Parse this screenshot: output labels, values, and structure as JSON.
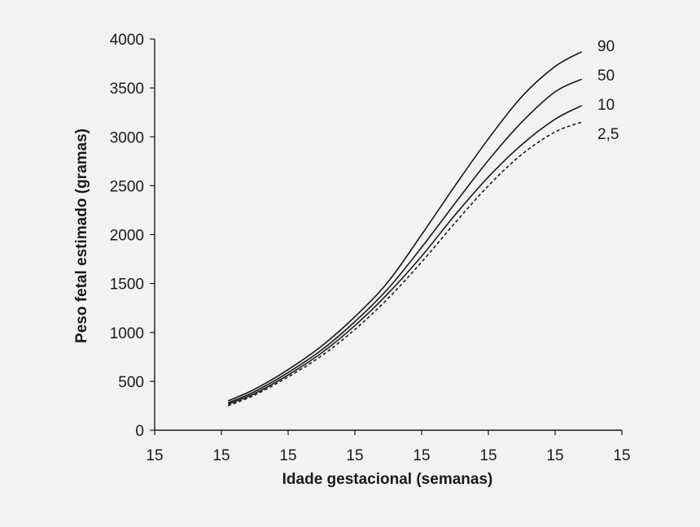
{
  "chart_data": {
    "type": "line",
    "title": "",
    "xlabel": "Idade gestacional (semanas)",
    "ylabel": "Peso fetal estimado (gramas)",
    "x_tick_labels": [
      "15",
      "15",
      "15",
      "15",
      "15",
      "15",
      "15",
      "15"
    ],
    "xlim": [
      0,
      7
    ],
    "y_ticks": [
      0,
      500,
      1000,
      1500,
      2000,
      2500,
      3000,
      3500,
      4000
    ],
    "ylim": [
      0,
      4000
    ],
    "grid": false,
    "colors": {
      "background": "#f2f2f2",
      "line": "#1a1a1a"
    },
    "series": [
      {
        "name": "90",
        "dashed": false,
        "x": [
          1.1,
          1.5,
          2.0,
          2.5,
          3.0,
          3.5,
          4.0,
          4.5,
          5.0,
          5.5,
          6.0,
          6.4
        ],
        "y": [
          300,
          420,
          620,
          860,
          1160,
          1520,
          2000,
          2500,
          2980,
          3410,
          3720,
          3870
        ]
      },
      {
        "name": "50",
        "dashed": false,
        "x": [
          1.1,
          1.5,
          2.0,
          2.5,
          3.0,
          3.5,
          4.0,
          4.5,
          5.0,
          5.5,
          6.0,
          6.4
        ],
        "y": [
          280,
          395,
          590,
          820,
          1110,
          1450,
          1870,
          2320,
          2760,
          3150,
          3460,
          3590
        ]
      },
      {
        "name": "10",
        "dashed": false,
        "x": [
          1.1,
          1.5,
          2.0,
          2.5,
          3.0,
          3.5,
          4.0,
          4.5,
          5.0,
          5.5,
          6.0,
          6.4
        ],
        "y": [
          265,
          375,
          565,
          790,
          1070,
          1400,
          1780,
          2200,
          2590,
          2920,
          3180,
          3320
        ]
      },
      {
        "name": "2,5",
        "dashed": true,
        "x": [
          1.1,
          1.5,
          2.0,
          2.5,
          3.0,
          3.5,
          4.0,
          4.5,
          5.0,
          5.5,
          6.0,
          6.4
        ],
        "y": [
          250,
          360,
          545,
          760,
          1030,
          1350,
          1720,
          2120,
          2500,
          2820,
          3050,
          3150
        ]
      }
    ]
  }
}
